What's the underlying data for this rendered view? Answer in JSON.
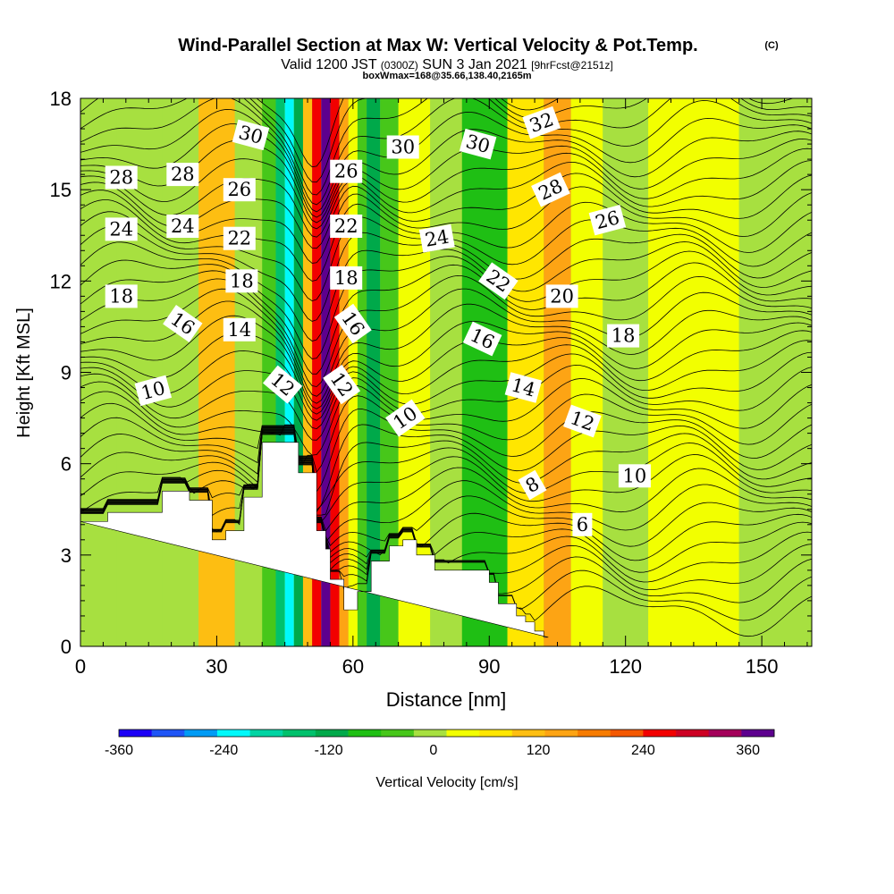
{
  "title": {
    "main": "Wind-Parallel Section at Max W: Vertical Velocity & Pot.Temp.",
    "copyright": "(C)",
    "valid_prefix": "Valid 1200 JST",
    "valid_utc": "(0300Z)",
    "valid_date": "SUN 3 Jan 2021",
    "forecast": "[9hrFcst@2151z]",
    "box_info": "boxWmax=168@35.66,138.40,2165m"
  },
  "colors": {
    "background": "#ffffff",
    "axis": "#000000",
    "contour": "#000000",
    "terrain": "#ffffff"
  },
  "chart_data": {
    "type": "heatmap",
    "xlabel": "Distance [nm]",
    "ylabel": "Height [Kft MSL]",
    "xlim": [
      0,
      161
    ],
    "ylim": [
      0,
      18
    ],
    "xticks": [
      0,
      30,
      60,
      90,
      120,
      150
    ],
    "yticks": [
      0,
      3,
      6,
      9,
      12,
      15,
      18
    ],
    "colorbar": {
      "title": "Vertical Velocity [cm/s]",
      "range": [
        -360,
        390
      ],
      "tick_values": [
        -360,
        -240,
        -120,
        0,
        120,
        240,
        360
      ],
      "tick_labels": [
        "-360",
        "-240",
        "-120",
        "0",
        "120",
        "240",
        "360"
      ],
      "colors": [
        "#1d00f6",
        "#1f55f6",
        "#009bf5",
        "#00f9fa",
        "#00d4a3",
        "#00c16c",
        "#00a94a",
        "#1fbf14",
        "#47c71a",
        "#a7e040",
        "#f2ff00",
        "#ffe600",
        "#fdbe12",
        "#fda414",
        "#f77c00",
        "#f45800",
        "#f20000",
        "#cd0023",
        "#a4005a",
        "#5d008e"
      ]
    },
    "velocity_bands": [
      {
        "x": [
          8,
          18
        ],
        "value": 0
      },
      {
        "x": [
          26,
          34
        ],
        "value": 100
      },
      {
        "x": [
          34,
          40
        ],
        "value": 0
      },
      {
        "x": [
          40,
          43
        ],
        "value": -60
      },
      {
        "x": [
          43,
          45
        ],
        "value": -150
      },
      {
        "x": [
          45,
          47
        ],
        "value": -220
      },
      {
        "x": [
          47,
          49
        ],
        "value": -120
      },
      {
        "x": [
          49,
          51
        ],
        "value": 120
      },
      {
        "x": [
          51,
          53
        ],
        "value": 240
      },
      {
        "x": [
          53,
          55
        ],
        "value": 380
      },
      {
        "x": [
          55,
          57
        ],
        "value": 270
      },
      {
        "x": [
          57,
          59
        ],
        "value": 150
      },
      {
        "x": [
          59,
          61
        ],
        "value": 40
      },
      {
        "x": [
          61,
          63
        ],
        "value": -60
      },
      {
        "x": [
          63,
          66
        ],
        "value": -100
      },
      {
        "x": [
          66,
          70
        ],
        "value": -30
      },
      {
        "x": [
          70,
          77
        ],
        "value": 40
      },
      {
        "x": [
          77,
          84
        ],
        "value": -20
      },
      {
        "x": [
          84,
          94
        ],
        "value": -90
      },
      {
        "x": [
          94,
          102
        ],
        "value": 60
      },
      {
        "x": [
          102,
          108
        ],
        "value": 140
      },
      {
        "x": [
          108,
          115
        ],
        "value": 20
      },
      {
        "x": [
          115,
          125
        ],
        "value": -20
      },
      {
        "x": [
          125,
          145
        ],
        "value": 15
      },
      {
        "x": [
          145,
          161
        ],
        "value": -20
      }
    ],
    "terrain": {
      "x": [
        0,
        6,
        6,
        18,
        18,
        24,
        24,
        29,
        29,
        32,
        32,
        36,
        36,
        40,
        40,
        44,
        44,
        48,
        48,
        52,
        52,
        54,
        54,
        55,
        55,
        58,
        58,
        61,
        61,
        64,
        64,
        68,
        68,
        71,
        71,
        74,
        74,
        78,
        78,
        82,
        82,
        86,
        86,
        90,
        90,
        92,
        92,
        96,
        96,
        98,
        98,
        100,
        100,
        102,
        102,
        103,
        103,
        161
      ],
      "y": [
        4.1,
        4.1,
        4.4,
        4.4,
        5.1,
        5.1,
        4.8,
        4.8,
        3.5,
        3.5,
        3.8,
        3.8,
        4.9,
        4.9,
        6.7,
        6.7,
        6.7,
        6.7,
        5.7,
        5.7,
        3.8,
        3.8,
        3.2,
        3.2,
        2.2,
        2.2,
        1.2,
        1.2,
        1.8,
        1.8,
        2.8,
        2.8,
        3.3,
        3.3,
        3.5,
        3.5,
        3.0,
        3.0,
        2.5,
        2.5,
        2.5,
        2.5,
        2.5,
        2.5,
        2.1,
        2.1,
        1.4,
        1.4,
        1.0,
        1.0,
        0.8,
        0.8,
        0.5,
        0.5,
        0.3,
        0.3,
        0.3
      ]
    },
    "contour_labels": [
      {
        "text": "28",
        "x": 9,
        "y": 15.4,
        "angle": 0
      },
      {
        "text": "28",
        "x": 22.5,
        "y": 15.5,
        "angle": 0
      },
      {
        "text": "30",
        "x": 37.5,
        "y": 16.8,
        "angle": 15
      },
      {
        "text": "30",
        "x": 71,
        "y": 16.4,
        "angle": 0
      },
      {
        "text": "30",
        "x": 87.5,
        "y": 16.5,
        "angle": 15
      },
      {
        "text": "32",
        "x": 101.5,
        "y": 17.2,
        "angle": -20
      },
      {
        "text": "26",
        "x": 35,
        "y": 15.0,
        "angle": 0
      },
      {
        "text": "26",
        "x": 58.5,
        "y": 15.6,
        "angle": 0
      },
      {
        "text": "28",
        "x": 103.5,
        "y": 15.0,
        "angle": -25
      },
      {
        "text": "26",
        "x": 116,
        "y": 14.0,
        "angle": -15
      },
      {
        "text": "24",
        "x": 9,
        "y": 13.7,
        "angle": 0
      },
      {
        "text": "24",
        "x": 22.5,
        "y": 13.8,
        "angle": 0
      },
      {
        "text": "22",
        "x": 35,
        "y": 13.4,
        "angle": 0
      },
      {
        "text": "22",
        "x": 58.5,
        "y": 13.8,
        "angle": 0
      },
      {
        "text": "24",
        "x": 78.5,
        "y": 13.4,
        "angle": -10
      },
      {
        "text": "22",
        "x": 92,
        "y": 12.0,
        "angle": 35
      },
      {
        "text": "20",
        "x": 106,
        "y": 11.5,
        "angle": 0
      },
      {
        "text": "18",
        "x": 9,
        "y": 11.5,
        "angle": 0
      },
      {
        "text": "18",
        "x": 35.5,
        "y": 12.0,
        "angle": 0
      },
      {
        "text": "18",
        "x": 58.5,
        "y": 12.1,
        "angle": 0
      },
      {
        "text": "16",
        "x": 22.5,
        "y": 10.6,
        "angle": 35
      },
      {
        "text": "14",
        "x": 35,
        "y": 10.4,
        "angle": 0
      },
      {
        "text": "16",
        "x": 60,
        "y": 10.6,
        "angle": 55
      },
      {
        "text": "16",
        "x": 88.5,
        "y": 10.1,
        "angle": 25
      },
      {
        "text": "18",
        "x": 119.5,
        "y": 10.2,
        "angle": 0
      },
      {
        "text": "12",
        "x": 44.5,
        "y": 8.6,
        "angle": 40
      },
      {
        "text": "12",
        "x": 57.5,
        "y": 8.6,
        "angle": 55
      },
      {
        "text": "14",
        "x": 97.5,
        "y": 8.5,
        "angle": 15
      },
      {
        "text": "10",
        "x": 16,
        "y": 8.4,
        "angle": -15
      },
      {
        "text": "10",
        "x": 71.5,
        "y": 7.5,
        "angle": -35
      },
      {
        "text": "12",
        "x": 110.5,
        "y": 7.4,
        "angle": 20
      },
      {
        "text": "10",
        "x": 122,
        "y": 5.6,
        "angle": 0
      },
      {
        "text": "8",
        "x": 99.5,
        "y": 5.3,
        "angle": -30
      },
      {
        "text": "6",
        "x": 110.5,
        "y": 4.0,
        "angle": 0
      }
    ]
  }
}
